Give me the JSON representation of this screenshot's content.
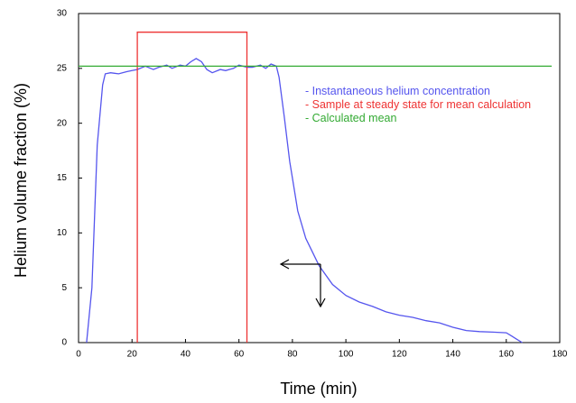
{
  "chart_data": {
    "type": "line",
    "x_label": "Time (min)",
    "y_label": "Helium volume fraction (%)",
    "xlim": [
      0,
      180
    ],
    "xticks": [
      0,
      20,
      40,
      60,
      80,
      100,
      120,
      140,
      160,
      180
    ],
    "ylim": [
      0,
      30
    ],
    "yticks": [
      0,
      5,
      10,
      15,
      20,
      25,
      30
    ],
    "grid": false,
    "series": [
      {
        "name": "- Instantaneous helium concentration",
        "color": "#5555ee",
        "x": [
          3,
          5,
          7,
          9,
          10,
          12,
          15,
          18,
          20,
          22,
          25,
          28,
          30,
          33,
          35,
          38,
          40,
          42,
          44,
          46,
          48,
          50,
          53,
          55,
          58,
          60,
          63,
          65,
          68,
          70,
          72,
          74,
          75,
          77,
          79,
          80,
          82,
          85,
          88,
          90,
          95,
          100,
          105,
          110,
          115,
          120,
          125,
          130,
          135,
          140,
          145,
          150,
          155,
          160,
          162,
          164,
          166
        ],
        "values": [
          0,
          5,
          18,
          23.5,
          24.5,
          24.6,
          24.5,
          24.7,
          24.8,
          24.9,
          25.2,
          24.9,
          25.1,
          25.3,
          25.0,
          25.3,
          25.2,
          25.6,
          25.9,
          25.6,
          24.9,
          24.6,
          24.9,
          24.8,
          25.0,
          25.3,
          25.1,
          25.1,
          25.3,
          25.0,
          25.4,
          25.2,
          24.2,
          20.5,
          16.5,
          15,
          12,
          9.5,
          8,
          7,
          5.3,
          4.3,
          3.7,
          3.3,
          2.8,
          2.5,
          2.3,
          2.0,
          1.8,
          1.4,
          1.1,
          1.0,
          0.95,
          0.9,
          0.6,
          0.3,
          0
        ]
      },
      {
        "name": "- Sample at steady state for mean calculation",
        "color": "#ee3333",
        "x": [
          22,
          22,
          63,
          63
        ],
        "values": [
          0,
          28.3,
          28.3,
          0
        ]
      },
      {
        "name": "- Calculated mean",
        "color": "#33aa33",
        "x": [
          0,
          177
        ],
        "values": [
          25.2,
          25.2
        ]
      }
    ]
  }
}
